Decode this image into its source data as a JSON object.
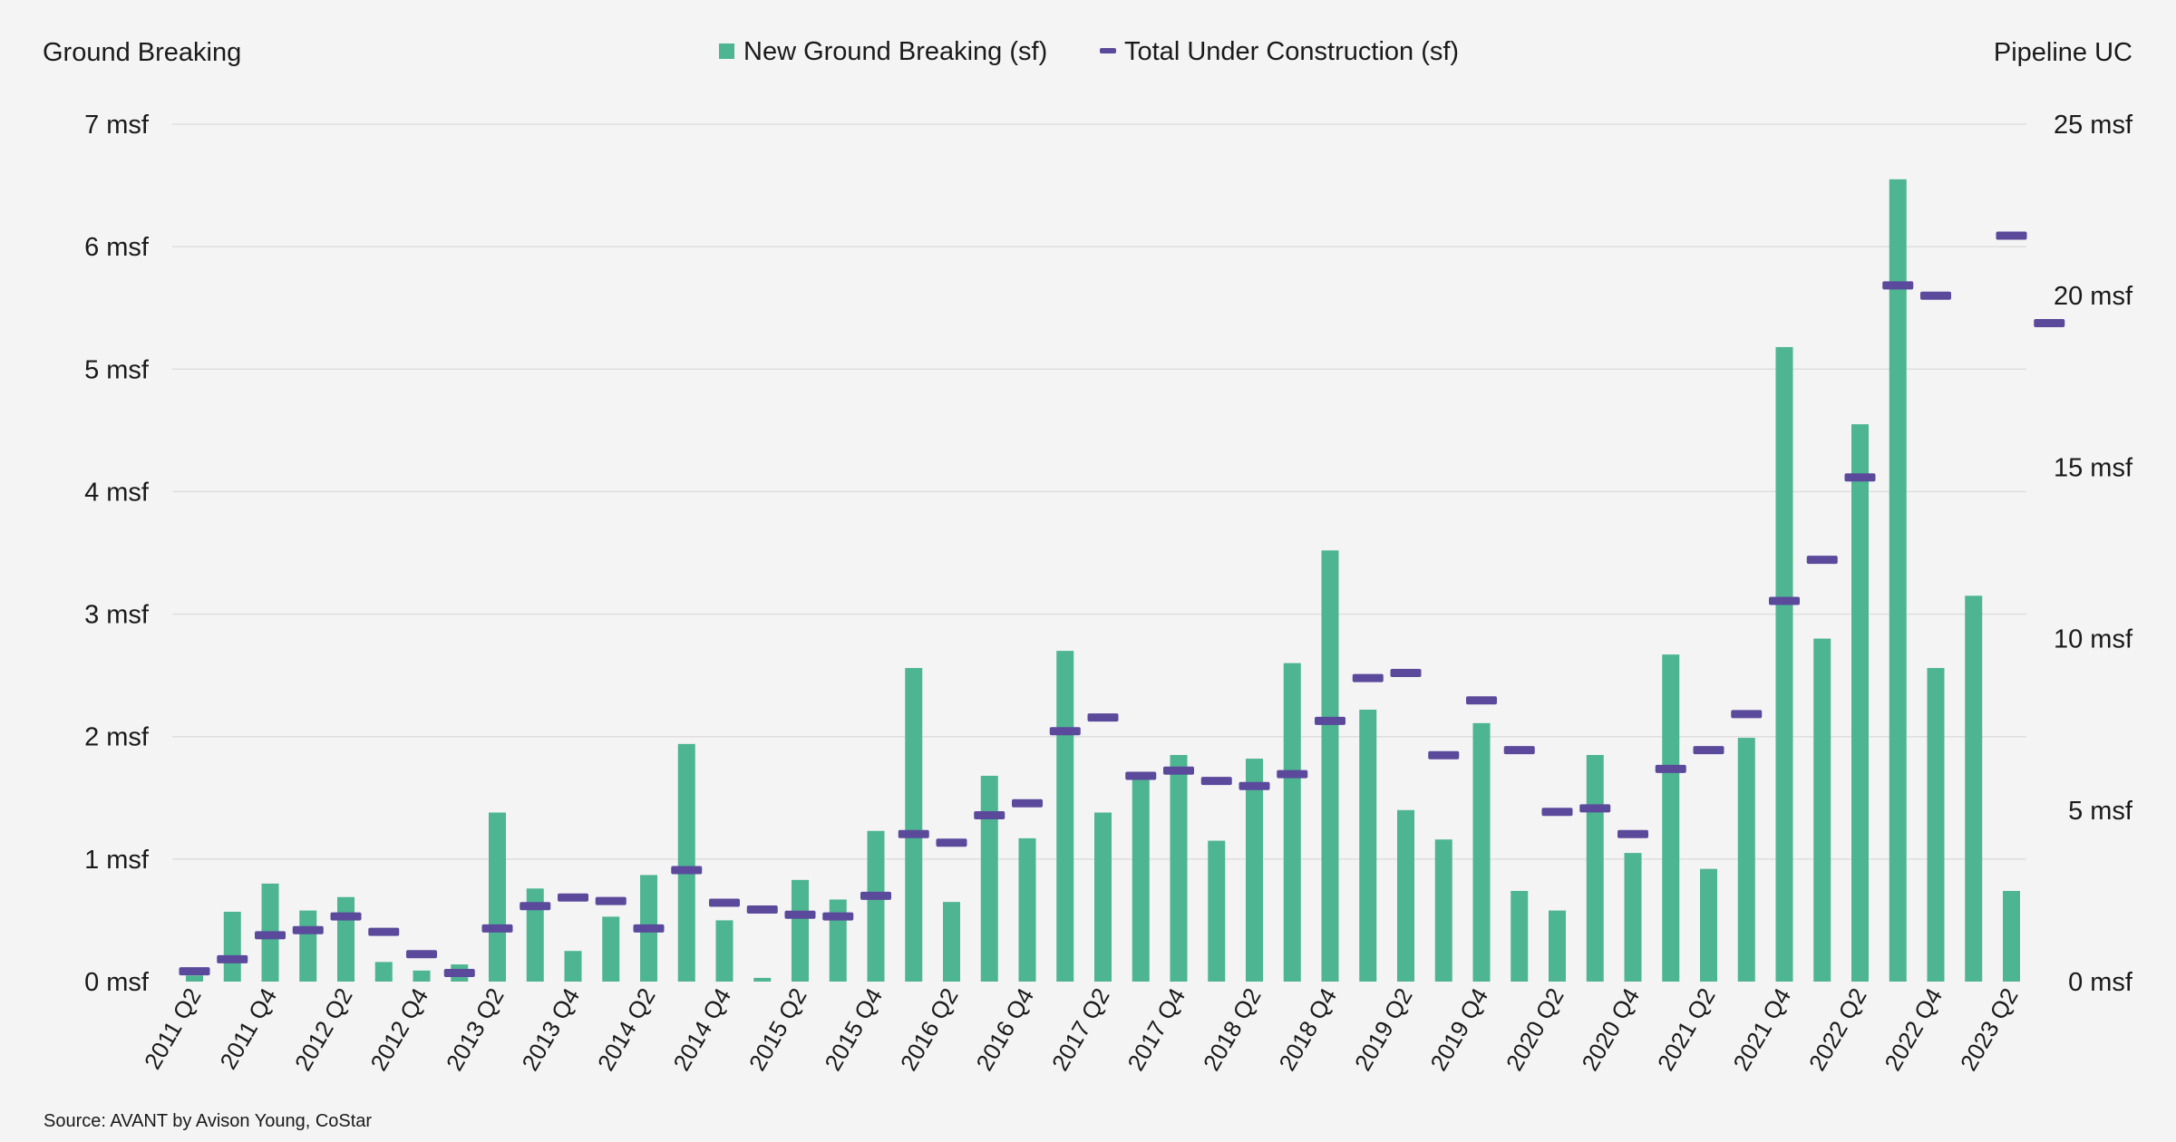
{
  "colors": {
    "bar": "#4db592",
    "marker": "#5b4a9c",
    "grid": "#dedede",
    "background": "#f4f4f4"
  },
  "chart_data": {
    "type": "bar",
    "left_axis_title": "Ground Breaking",
    "right_axis_title": "Pipeline UC",
    "source": "Source: AVANT by Avison Young, CoStar",
    "legend_position": "top-center",
    "grid": true,
    "left_axis": {
      "min": 0,
      "max": 7,
      "ticks": [
        0,
        1,
        2,
        3,
        4,
        5,
        6,
        7
      ],
      "tick_labels": [
        "0 msf",
        "1 msf",
        "2 msf",
        "3 msf",
        "4 msf",
        "5 msf",
        "6 msf",
        "7 msf"
      ]
    },
    "right_axis": {
      "min": 0,
      "max": 25,
      "ticks": [
        0,
        5,
        10,
        15,
        20,
        25
      ],
      "tick_labels": [
        "0 msf",
        "5 msf",
        "10 msf",
        "15 msf",
        "20 msf",
        "25 msf"
      ]
    },
    "categories": [
      "2011 Q2",
      "2011 Q3",
      "2011 Q4",
      "2012 Q1",
      "2012 Q2",
      "2012 Q3",
      "2012 Q4",
      "2013 Q1",
      "2013 Q2",
      "2013 Q3",
      "2013 Q4",
      "2014 Q1",
      "2014 Q2",
      "2014 Q3",
      "2014 Q4",
      "2015 Q1",
      "2015 Q2",
      "2015 Q3",
      "2015 Q4",
      "2016 Q1",
      "2016 Q2",
      "2016 Q3",
      "2016 Q4",
      "2017 Q1",
      "2017 Q2",
      "2017 Q3",
      "2017 Q4",
      "2018 Q1",
      "2018 Q2",
      "2018 Q3",
      "2018 Q4",
      "2019 Q1",
      "2019 Q2",
      "2019 Q3",
      "2019 Q4",
      "2020 Q1",
      "2020 Q2",
      "2020 Q3",
      "2020 Q4",
      "2021 Q1",
      "2021 Q2",
      "2021 Q3",
      "2021 Q4",
      "2022 Q1",
      "2022 Q2",
      "2022 Q3",
      "2022 Q4",
      "2023 Q1",
      "2023 Q2",
      "2023 Q3"
    ],
    "x_tick_labels": [
      "2011 Q2",
      "2011 Q4",
      "2012 Q2",
      "2012 Q4",
      "2013 Q2",
      "2013 Q4",
      "2014 Q2",
      "2014 Q4",
      "2015 Q2",
      "2015 Q4",
      "2016 Q2",
      "2016 Q4",
      "2017 Q2",
      "2017 Q4",
      "2018 Q2",
      "2018 Q4",
      "2019 Q2",
      "2019 Q4",
      "2020 Q2",
      "2020 Q4",
      "2021 Q2",
      "2021 Q4",
      "2022 Q2",
      "2022 Q4",
      "2023 Q2"
    ],
    "series": [
      {
        "name": "New Ground Breaking (sf)",
        "type": "bar",
        "axis": "left",
        "values": [
          0.05,
          0.57,
          0.8,
          0.58,
          0.69,
          0.16,
          0.09,
          0.14,
          1.38,
          0.76,
          0.25,
          0.53,
          0.87,
          1.94,
          0.5,
          0.03,
          0.83,
          0.67,
          1.23,
          2.56,
          0.65,
          1.68,
          1.17,
          2.7,
          1.38,
          1.7,
          1.85,
          1.15,
          1.82,
          2.6,
          3.52,
          2.22,
          1.4,
          1.16,
          2.11,
          0.74,
          0.58,
          1.85,
          1.05,
          2.67,
          0.92,
          1.99,
          5.18,
          2.8,
          4.55,
          6.55,
          2.56,
          3.15,
          0.74,
          null
        ]
      },
      {
        "name": "Total Under Construction (sf)",
        "type": "marker",
        "axis": "right",
        "values": [
          0.3,
          0.65,
          1.35,
          1.5,
          1.9,
          1.45,
          0.8,
          0.25,
          1.55,
          2.2,
          2.45,
          2.35,
          1.55,
          3.25,
          2.3,
          2.1,
          1.95,
          1.9,
          2.5,
          4.3,
          4.05,
          4.85,
          5.2,
          7.3,
          7.7,
          6.0,
          6.15,
          5.85,
          5.7,
          6.05,
          7.6,
          8.85,
          9.0,
          6.6,
          8.2,
          6.75,
          4.95,
          5.05,
          4.3,
          6.2,
          6.75,
          7.8,
          11.1,
          12.3,
          14.7,
          20.3,
          20.0,
          null,
          21.75,
          19.2
        ]
      }
    ]
  }
}
